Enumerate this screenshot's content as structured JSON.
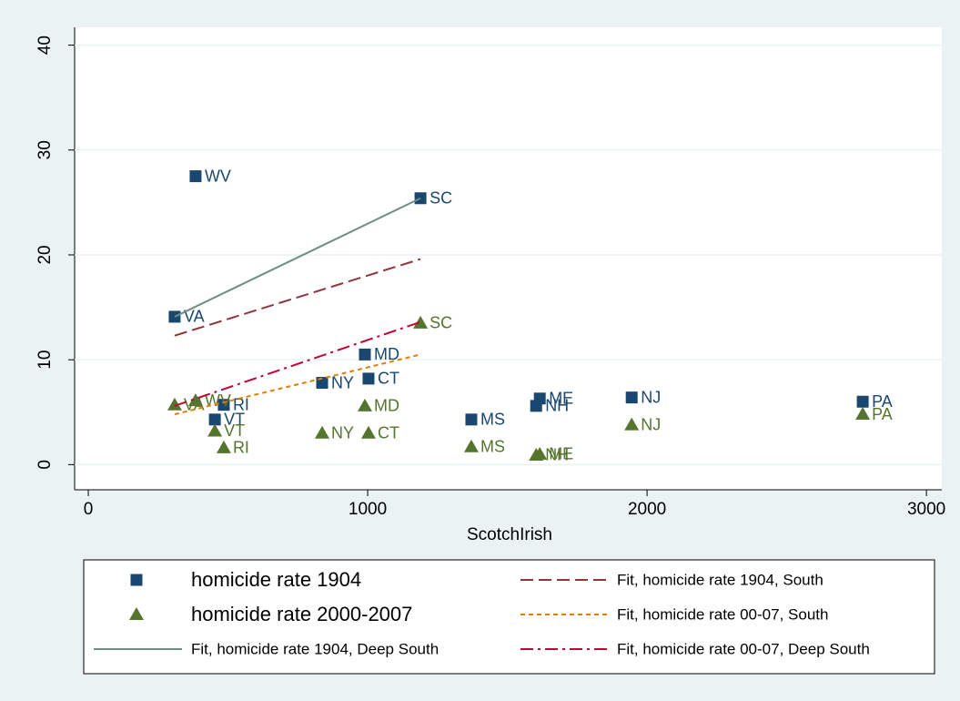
{
  "chart_data": {
    "type": "scatter",
    "x_label": "ScotchIrish",
    "xlim": [
      -49,
      3055
    ],
    "xticks": [
      0,
      1000,
      2000,
      3000
    ],
    "ylim": [
      -2.4,
      41.7
    ],
    "yticks": [
      0,
      10,
      20,
      30,
      40
    ],
    "grid": true,
    "series": [
      {
        "name": "homicide rate 1904",
        "color": "#1a476f",
        "marker": "square",
        "labels": [
          "WV",
          "VA",
          "SC",
          "MD",
          "CT",
          "NY",
          "RI",
          "VT",
          "MS",
          "ME",
          "NH",
          "NJ",
          "PA"
        ],
        "x": [
          384,
          309,
          1189,
          990,
          1003,
          837,
          485,
          453,
          1371,
          1616,
          1603,
          1945,
          2772
        ],
        "values": [
          27.5,
          14.1,
          25.4,
          10.5,
          8.2,
          7.8,
          5.7,
          4.3,
          4.3,
          6.3,
          5.6,
          6.4,
          6.0
        ]
      },
      {
        "name": "Fit, homicide rate 1904, South",
        "color": "#90353b",
        "line_style": "dash",
        "x": [
          309,
          1189
        ],
        "values": [
          12.3,
          19.6
        ]
      },
      {
        "name": "homicide rate 2000-2007",
        "color": "#55752f",
        "marker": "triangle",
        "labels": [
          "VA",
          "WV",
          "SC",
          "MD",
          "CT",
          "NY",
          "RI",
          "VT",
          "MS",
          "ME",
          "NH",
          "NJ",
          "PA"
        ],
        "x": [
          309,
          384,
          1189,
          990,
          1003,
          837,
          485,
          453,
          1371,
          1616,
          1603,
          1945,
          2772
        ],
        "values": [
          5.7,
          6.1,
          13.5,
          5.6,
          3.0,
          3.0,
          1.6,
          3.2,
          1.7,
          1.0,
          0.9,
          3.8,
          4.8
        ]
      },
      {
        "name": "Fit, homicide rate 00-07, South",
        "color": "#e37e00",
        "line_style": "shortdash",
        "x": [
          309,
          1189
        ],
        "values": [
          4.8,
          10.5
        ]
      },
      {
        "name": "Fit, homicide rate 1904, Deep South",
        "color": "#6e8e84",
        "line_style": "solid",
        "x": [
          309,
          1189
        ],
        "values": [
          14.1,
          25.4
        ]
      },
      {
        "name": "Fit, homicide rate 00-07, Deep South",
        "color": "#c10534",
        "line_style": "dashdot",
        "x": [
          309,
          1189
        ],
        "values": [
          5.6,
          13.6
        ]
      }
    ]
  }
}
